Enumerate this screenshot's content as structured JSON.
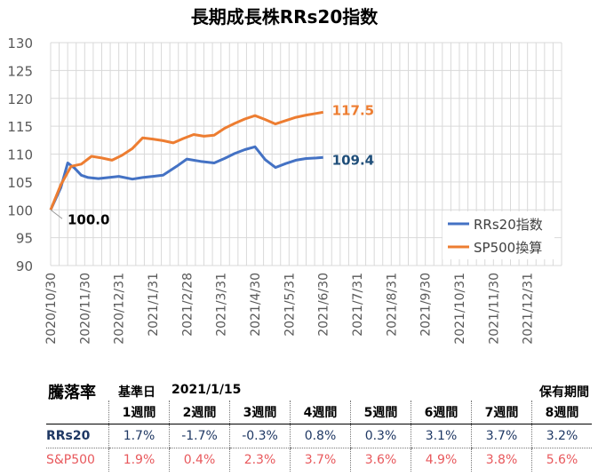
{
  "chart_data": {
    "type": "line",
    "title": "長期成長株RRs20指数",
    "ylim": [
      90,
      130
    ],
    "yticks": [
      90,
      95,
      100,
      105,
      110,
      115,
      120,
      125,
      130
    ],
    "xticks": [
      "2020/10/30",
      "2020/11/30",
      "2020/12/31",
      "2021/1/31",
      "2021/2/28",
      "2021/3/31",
      "2021/4/30",
      "2021/5/31",
      "2021/6/30",
      "2021/7/31",
      "2021/8/31",
      "2021/9/30",
      "2021/10/31",
      "2021/11/30",
      "2021/12/31"
    ],
    "grid": true,
    "legend_position": "bottom-right",
    "series": [
      {
        "name": "RRs20指数",
        "color": "#4472c4",
        "x": [
          0,
          3,
          5,
          7,
          9,
          11,
          14,
          17,
          20,
          24,
          27,
          30,
          33,
          37,
          40,
          44,
          48,
          51,
          54,
          57,
          60,
          63,
          66,
          69,
          72,
          75,
          78,
          80
        ],
        "y": [
          100.0,
          104.0,
          108.4,
          107.5,
          106.2,
          105.8,
          105.6,
          105.8,
          106.0,
          105.5,
          105.8,
          106.0,
          106.2,
          107.8,
          109.1,
          108.7,
          108.4,
          109.2,
          110.1,
          110.8,
          111.3,
          109.0,
          107.6,
          108.3,
          108.9,
          109.2,
          109.3,
          109.4
        ]
      },
      {
        "name": "SP500換算",
        "color": "#ed7d31",
        "x": [
          0,
          3,
          6,
          9,
          12,
          15,
          18,
          21,
          24,
          27,
          30,
          33,
          36,
          39,
          42,
          45,
          48,
          51,
          54,
          57,
          60,
          63,
          66,
          69,
          72,
          75,
          78,
          80
        ],
        "y": [
          100.0,
          104.5,
          107.8,
          108.2,
          109.6,
          109.3,
          108.9,
          109.8,
          111.0,
          112.9,
          112.7,
          112.4,
          112.0,
          112.8,
          113.5,
          113.2,
          113.4,
          114.6,
          115.5,
          116.3,
          116.9,
          116.2,
          115.4,
          116.0,
          116.6,
          117.0,
          117.3,
          117.5
        ]
      }
    ],
    "annotations": [
      "100.0",
      "109.4",
      "117.5"
    ]
  },
  "performance": {
    "title": "騰落率",
    "base_label": "基準日",
    "base_date": "2021/1/15",
    "holding_label": "保有期間",
    "periods": [
      "1週間",
      "2週間",
      "3週間",
      "4週間",
      "5週間",
      "6週間",
      "7週間",
      "8週間"
    ],
    "rows": [
      {
        "label": "RRs20",
        "values": [
          "1.7%",
          "-1.7%",
          "-0.3%",
          "0.8%",
          "0.3%",
          "3.1%",
          "3.7%",
          "3.2%"
        ]
      },
      {
        "label": "S&P500",
        "values": [
          "1.9%",
          "0.4%",
          "2.3%",
          "3.7%",
          "3.6%",
          "4.9%",
          "3.8%",
          "5.6%"
        ]
      }
    ]
  }
}
